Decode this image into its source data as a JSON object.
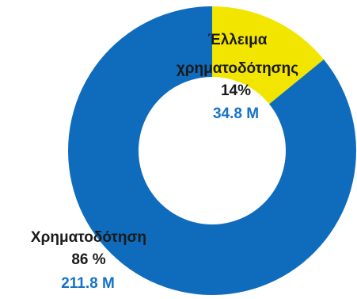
{
  "chart_data": {
    "type": "pie",
    "variant": "donut",
    "series": [
      {
        "name_lines": [
          "Έλλειμα",
          "χρηματοδότησης"
        ],
        "percent_label": "14%",
        "amount_label": "34.8 M",
        "value": 34.8,
        "color": "#f2e600"
      },
      {
        "name_lines": [
          "Χρηματοδότηση"
        ],
        "percent_label": "86 %",
        "amount_label": "211.8 M",
        "value": 211.8,
        "color": "#0f6cbd"
      }
    ],
    "label_amount_color": "#1473c8",
    "start_angle_deg": 0,
    "direction": "clockwise"
  }
}
